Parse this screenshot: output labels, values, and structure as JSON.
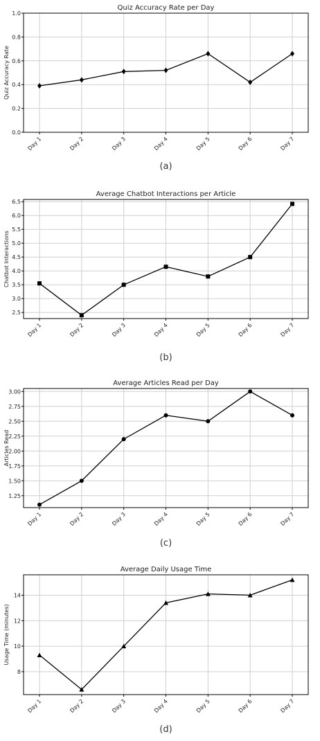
{
  "figure": {
    "charts": [
      {
        "caption": "(a)"
      },
      {
        "caption": "(b)"
      },
      {
        "caption": "(c)"
      },
      {
        "caption": "(d)"
      }
    ]
  },
  "chart_data": [
    {
      "type": "line",
      "title": "Quiz Accuracy Rate per Day",
      "xlabel": "",
      "ylabel": "Quiz Accuracy Rate",
      "categories": [
        "Day 1",
        "Day 2",
        "Day 3",
        "Day 4",
        "Day 5",
        "Day 6",
        "Day 7"
      ],
      "values": [
        0.39,
        0.44,
        0.51,
        0.52,
        0.66,
        0.42,
        0.66
      ],
      "ylim": [
        0.0,
        1.0
      ],
      "yticks": [
        "0.0",
        "0.2",
        "0.4",
        "0.6",
        "0.8",
        "1.0"
      ],
      "marker": "diamond",
      "color": "#000000",
      "grid": true
    },
    {
      "type": "line",
      "title": "Average Chatbot Interactions per Article",
      "xlabel": "",
      "ylabel": "Chatbot Interactions",
      "categories": [
        "Day 1",
        "Day 2",
        "Day 3",
        "Day 4",
        "Day 5",
        "Day 6",
        "Day 7"
      ],
      "values": [
        3.55,
        2.4,
        3.5,
        4.15,
        3.8,
        4.5,
        6.42
      ],
      "ylim": [
        2.28,
        6.58
      ],
      "yticks": [
        "2.5",
        "3.0",
        "3.5",
        "4.0",
        "4.5",
        "5.0",
        "5.5",
        "6.0",
        "6.5"
      ],
      "marker": "square",
      "color": "#000000",
      "grid": true
    },
    {
      "type": "line",
      "title": "Average Articles Read per Day",
      "xlabel": "",
      "ylabel": "Articles Read",
      "categories": [
        "Day 1",
        "Day 2",
        "Day 3",
        "Day 4",
        "Day 5",
        "Day 6",
        "Day 7"
      ],
      "values": [
        1.1,
        1.5,
        2.2,
        2.6,
        2.5,
        3.0,
        2.6
      ],
      "ylim": [
        1.05,
        3.05
      ],
      "yticks": [
        "1.25",
        "1.50",
        "1.75",
        "2.00",
        "2.25",
        "2.50",
        "2.75",
        "3.00"
      ],
      "marker": "circle",
      "color": "#000000",
      "grid": true
    },
    {
      "type": "line",
      "title": "Average Daily Usage Time",
      "xlabel": "",
      "ylabel": "Usage Time (minutes)",
      "categories": [
        "Day 1",
        "Day 2",
        "Day 3",
        "Day 4",
        "Day 5",
        "Day 6",
        "Day 7"
      ],
      "values": [
        9.3,
        6.6,
        10.0,
        13.4,
        14.1,
        14.0,
        15.2
      ],
      "ylim": [
        6.2,
        15.6
      ],
      "yticks": [
        "8",
        "10",
        "12",
        "14"
      ],
      "marker": "triangle",
      "color": "#000000",
      "grid": true
    }
  ]
}
